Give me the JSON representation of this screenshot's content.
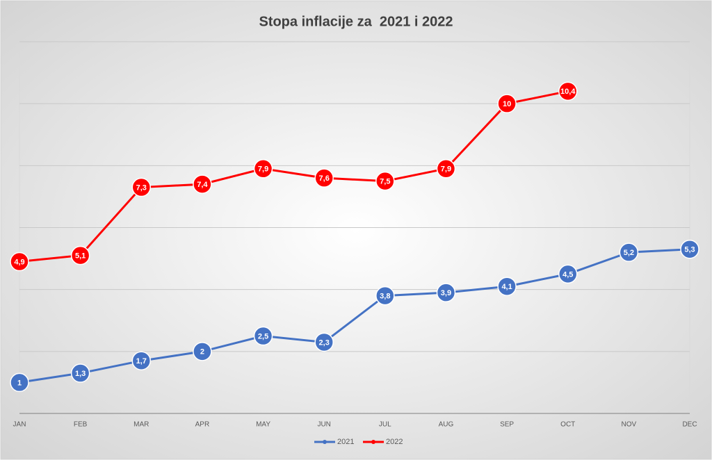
{
  "chart_data": {
    "type": "line",
    "title": "Stopa inflacije za  2021 i 2022",
    "categories": [
      "JAN",
      "FEB",
      "MAR",
      "APR",
      "MAY",
      "JUN",
      "JUL",
      "AUG",
      "SEP",
      "OCT",
      "NOV",
      "DEC"
    ],
    "series": [
      {
        "name": "2021",
        "color": "#4472c4",
        "values": [
          1,
          1.3,
          1.7,
          2,
          2.5,
          2.3,
          3.8,
          3.9,
          4.1,
          4.5,
          5.2,
          5.3
        ],
        "value_labels": [
          "1",
          "1,3",
          "1,7",
          "2",
          "2,5",
          "2,3",
          "3,8",
          "3,9",
          "4,1",
          "4,5",
          "5,2",
          "5,3"
        ]
      },
      {
        "name": "2022",
        "color": "#ff0000",
        "values": [
          4.9,
          5.1,
          7.3,
          7.4,
          7.9,
          7.6,
          7.5,
          7.9,
          10,
          10.4,
          null,
          null
        ],
        "value_labels": [
          "4,9",
          "5,1",
          "7,3",
          "7,4",
          "7,9",
          "7,6",
          "7,5",
          "7,9",
          "10",
          "10,4",
          null,
          null
        ]
      }
    ],
    "ylim": [
      0,
      12
    ],
    "yticks": [
      0,
      2,
      4,
      6,
      8,
      10,
      12
    ],
    "grid": true
  }
}
